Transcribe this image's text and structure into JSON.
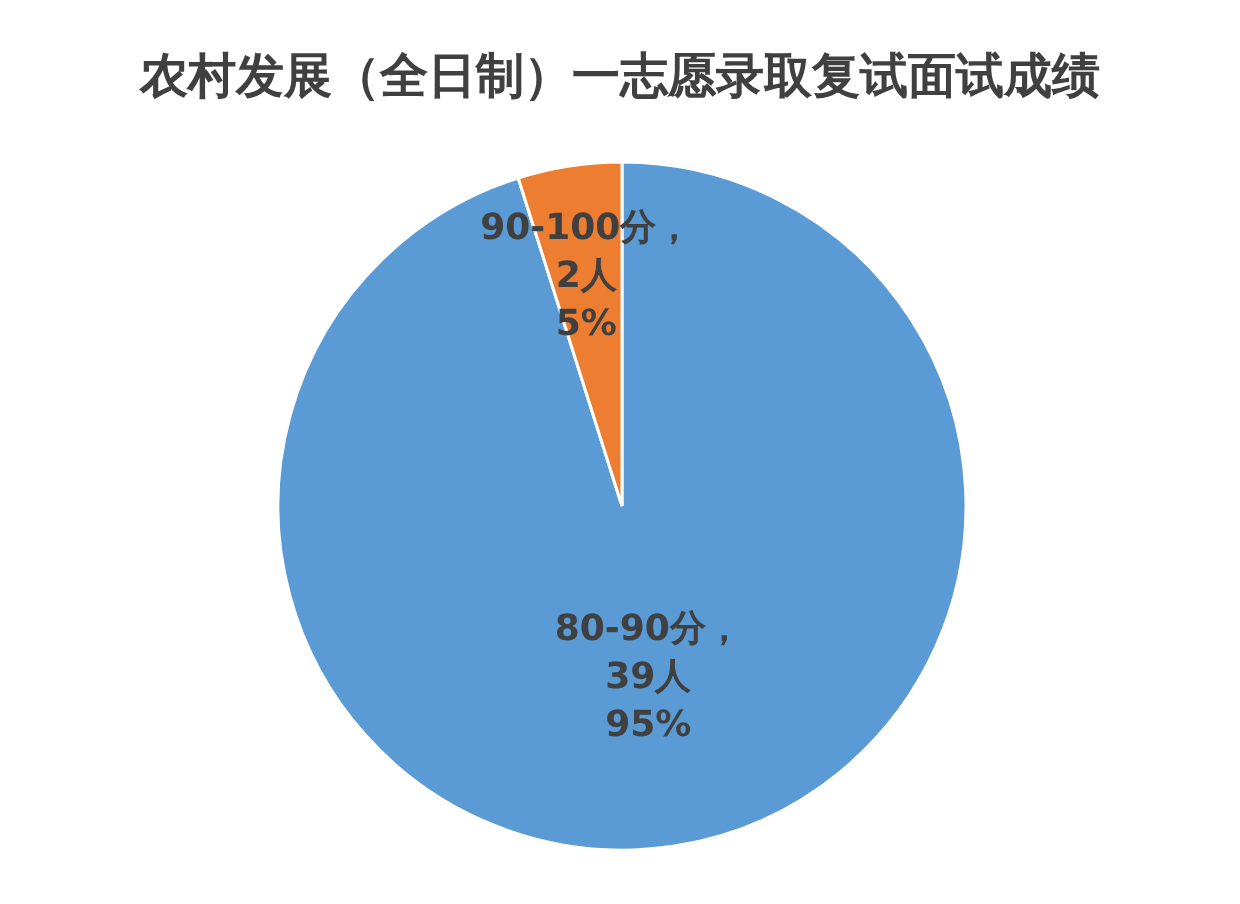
{
  "chart_data": {
    "type": "pie",
    "title": "农村发展（全日制）一志愿录取复试面试成绩",
    "categories": [
      "80-90分",
      "90-100分"
    ],
    "values": [
      39,
      2
    ],
    "colors": [
      "#5b9bd5",
      "#ed7d31"
    ],
    "value_labels": [
      "，\n39人\n95%",
      "，\n2人\n5%"
    ],
    "legend": false
  }
}
